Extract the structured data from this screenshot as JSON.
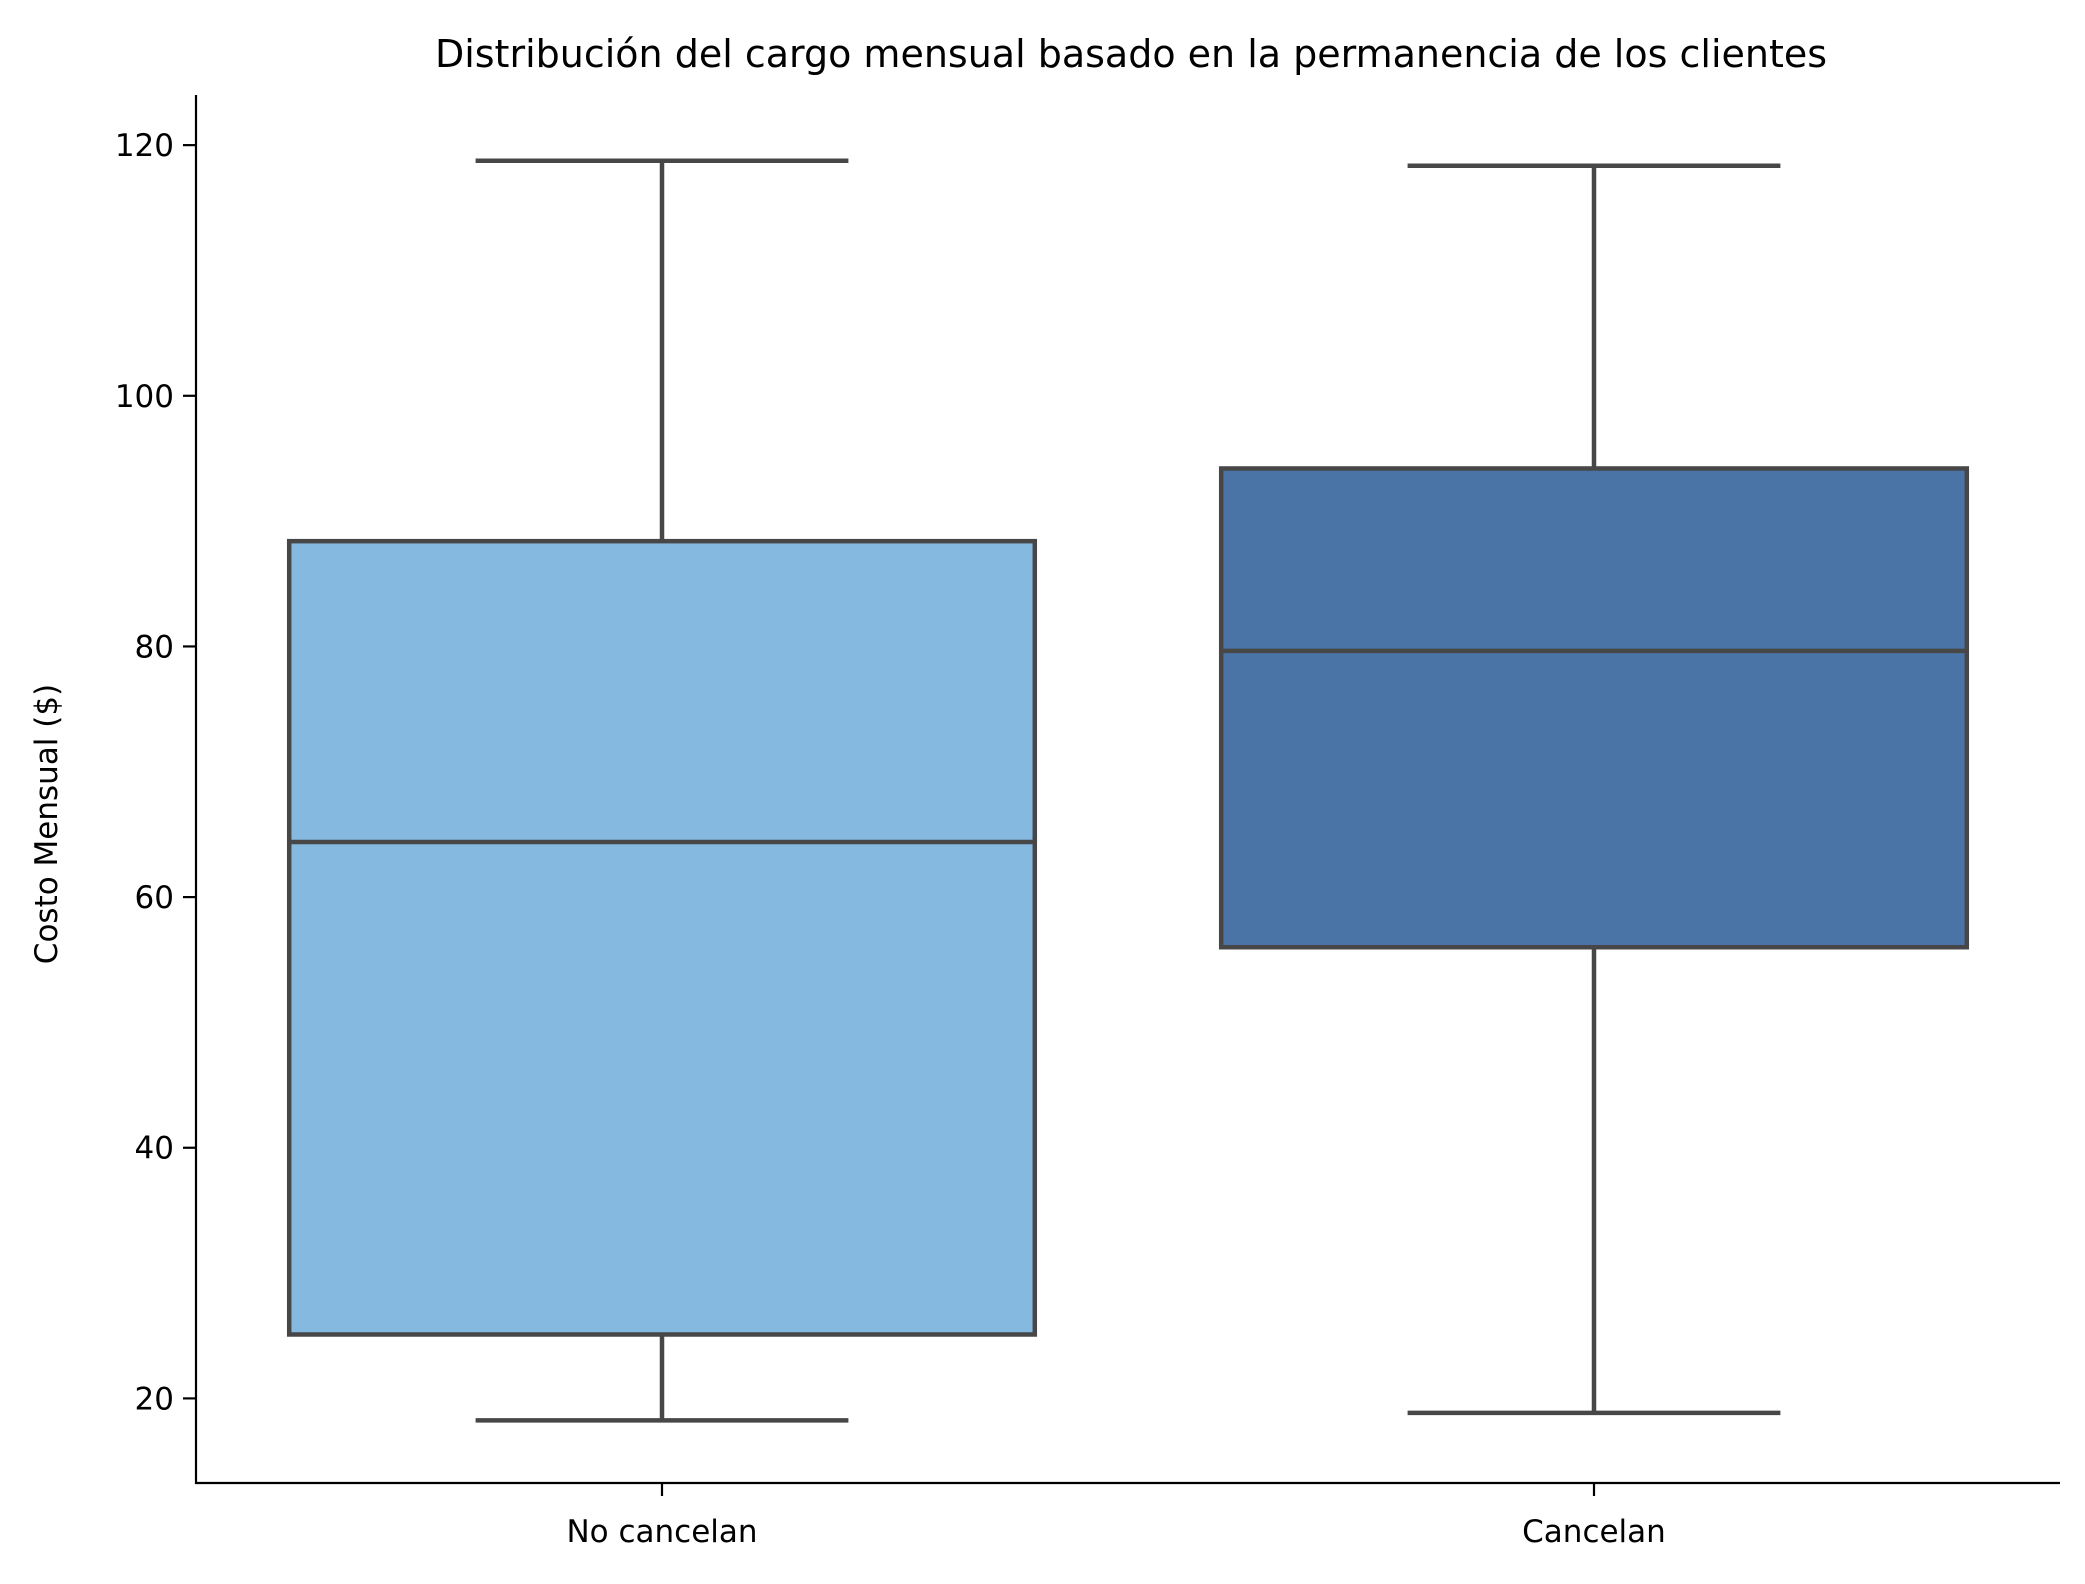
{
  "chart_data": {
    "type": "box",
    "title": "Distribución del cargo mensual basado en la permanencia de los clientes",
    "xlabel": "",
    "ylabel": "Costo Mensual ($)",
    "ylim": [
      13.25,
      124.0
    ],
    "yticks": [
      20,
      40,
      60,
      80,
      100,
      120
    ],
    "grid": false,
    "legend": "none",
    "categories": [
      "No cancelan",
      "Cancelan"
    ],
    "boxes": [
      {
        "category": "No cancelan",
        "whisker_low": 18.25,
        "q1": 25.1,
        "median": 64.4,
        "q3": 88.4,
        "whisker_high": 118.75,
        "color": "#85b9e0"
      },
      {
        "category": "Cancelan",
        "whisker_low": 18.85,
        "q1": 56.0,
        "median": 79.65,
        "q3": 94.2,
        "whisker_high": 118.35,
        "color": "#4a74a6"
      }
    ],
    "line_color": "#474747"
  }
}
